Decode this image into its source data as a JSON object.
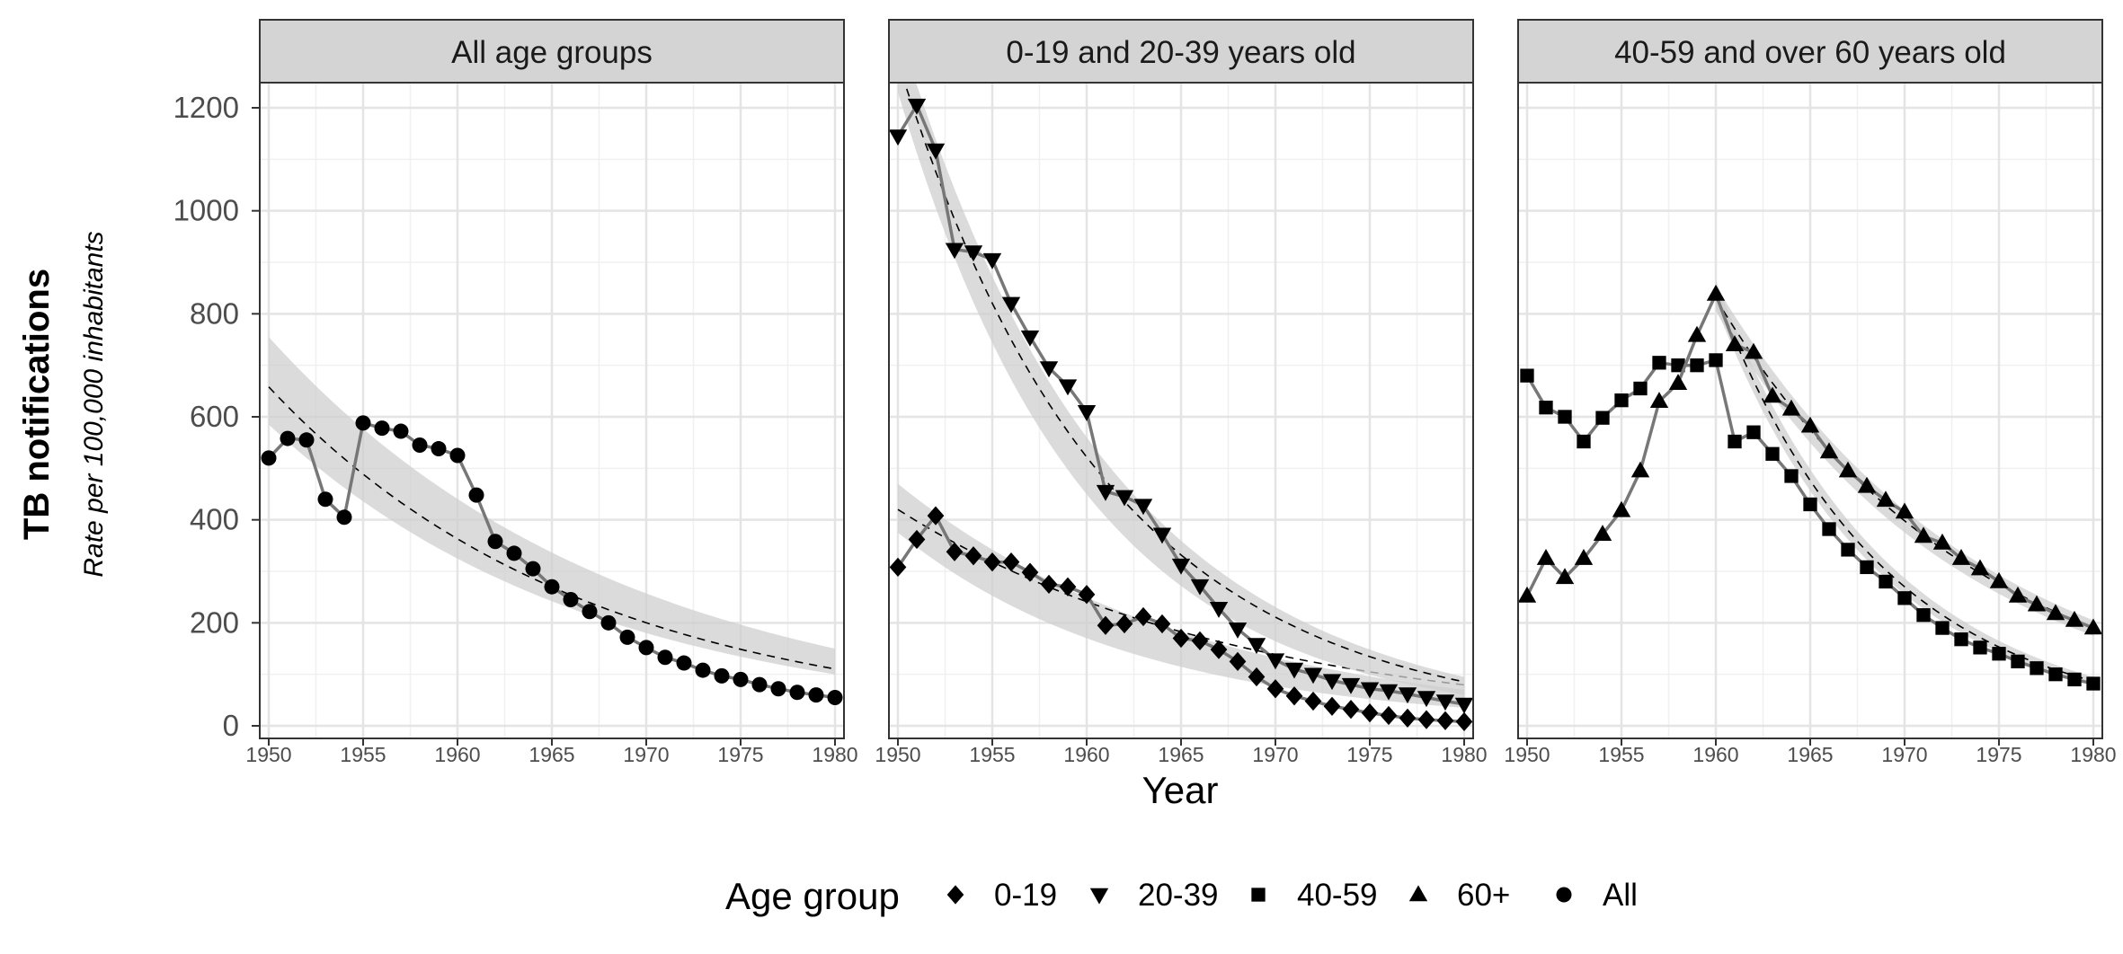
{
  "chart_data": {
    "type": "line",
    "ylabel": "TB notifications",
    "ylabel_sub": "Rate per 100,000 inhabitants",
    "xlabel": "Year",
    "xlim": [
      1950,
      1980
    ],
    "ylim": [
      0,
      1200
    ],
    "x_ticks": [
      1950,
      1955,
      1960,
      1965,
      1970,
      1975,
      1980
    ],
    "y_ticks": [
      0,
      200,
      400,
      600,
      800,
      1000,
      1200
    ],
    "grid": true,
    "legend": {
      "title": "Age group",
      "position": "bottom",
      "entries": [
        {
          "shape": "diamond",
          "label": "0-19"
        },
        {
          "shape": "triangle-down",
          "label": "20-39"
        },
        {
          "shape": "square",
          "label": "40-59"
        },
        {
          "shape": "triangle-up",
          "label": "60+"
        },
        {
          "shape": "circle",
          "label": "All"
        }
      ]
    },
    "panels": [
      {
        "title": "All age groups",
        "series": [
          {
            "name": "All",
            "shape": "circle",
            "x": [
              1950,
              1951,
              1952,
              1953,
              1954,
              1955,
              1956,
              1957,
              1958,
              1959,
              1960,
              1961,
              1962,
              1963,
              1964,
              1965,
              1966,
              1967,
              1968,
              1969,
              1970,
              1971,
              1972,
              1973,
              1974,
              1975,
              1976,
              1977,
              1978,
              1979,
              1980
            ],
            "y": [
              520,
              558,
              555,
              440,
              405,
              588,
              578,
              572,
              545,
              538,
              525,
              448,
              358,
              335,
              305,
              270,
              245,
              222,
              200,
              172,
              152,
              133,
              122,
              108,
              97,
              90,
              80,
              72,
              65,
              60,
              55
            ],
            "fit": {
              "a": 658,
              "k": 0.0595,
              "lower": [
                585,
                100
              ],
              "upper": [
                755,
                150
              ]
            }
          }
        ]
      },
      {
        "title": "0-19 and 20-39 years old",
        "series": [
          {
            "name": "0-19",
            "shape": "diamond",
            "x": [
              1950,
              1951,
              1952,
              1953,
              1954,
              1955,
              1956,
              1957,
              1958,
              1959,
              1960,
              1961,
              1962,
              1963,
              1964,
              1965,
              1966,
              1967,
              1968,
              1969,
              1970,
              1971,
              1972,
              1973,
              1974,
              1975,
              1976,
              1977,
              1978,
              1979,
              1980
            ],
            "y": [
              308,
              362,
              408,
              338,
              330,
              318,
              318,
              298,
              275,
              270,
              255,
              195,
              198,
              212,
              198,
              170,
              165,
              148,
              125,
              95,
              72,
              58,
              48,
              38,
              32,
              25,
              20,
              15,
              12,
              10,
              8
            ],
            "fit": {
              "a": 420,
              "k": 0.0555,
              "lower": [
                375,
                35
              ],
              "upper": [
                470,
                70
              ]
            }
          },
          {
            "name": "20-39",
            "shape": "triangle-down",
            "x": [
              1950,
              1951,
              1952,
              1953,
              1954,
              1955,
              1956,
              1957,
              1958,
              1959,
              1960,
              1961,
              1962,
              1963,
              1964,
              1965,
              1966,
              1967,
              1968,
              1969,
              1970,
              1971,
              1972,
              1973,
              1974,
              1975,
              1976,
              1977,
              1978,
              1979,
              1980
            ],
            "y": [
              1145,
              1205,
              1118,
              925,
              920,
              905,
              820,
              755,
              695,
              660,
              610,
              455,
              445,
              428,
              372,
              312,
              272,
              228,
              188,
              158,
              128,
              110,
              100,
              88,
              80,
              72,
              68,
              62,
              55,
              48,
              42
            ],
            "fit": {
              "a": 1290,
              "k": 0.0905,
              "lower": [
                1230,
                60
              ],
              "upper": [
                1360,
                95
              ]
            }
          }
        ]
      },
      {
        "title": "40-59 and over 60 years old",
        "series": [
          {
            "name": "40-59",
            "shape": "square",
            "x": [
              1950,
              1951,
              1952,
              1953,
              1954,
              1955,
              1956,
              1957,
              1958,
              1959,
              1960,
              1961,
              1962,
              1963,
              1964,
              1965,
              1966,
              1967,
              1968,
              1969,
              1970,
              1971,
              1972,
              1973,
              1974,
              1975,
              1976,
              1977,
              1978,
              1979,
              1980
            ],
            "y": [
              680,
              618,
              600,
              552,
              598,
              632,
              655,
              705,
              700,
              700,
              710,
              552,
              570,
              528,
              485,
              430,
              382,
              342,
              308,
              280,
              248,
              215,
              190,
              168,
              152,
              140,
              125,
              112,
              100,
              90,
              82
            ],
            "fit": {
              "start": 1960,
              "a": 840,
              "k": 0.1135,
              "lower": [
                815,
                80
              ],
              "upper": [
                865,
                95
              ]
            }
          },
          {
            "name": "60+",
            "shape": "triangle-up",
            "x": [
              1950,
              1951,
              1952,
              1953,
              1954,
              1955,
              1956,
              1957,
              1958,
              1959,
              1960,
              1961,
              1962,
              1963,
              1964,
              1965,
              1966,
              1967,
              1968,
              1969,
              1970,
              1971,
              1972,
              1973,
              1974,
              1975,
              1976,
              1977,
              1978,
              1979,
              1980
            ],
            "y": [
              252,
              325,
              288,
              325,
              372,
              418,
              495,
              630,
              665,
              758,
              838,
              740,
              725,
              640,
              615,
              582,
              532,
              495,
              465,
              438,
              415,
              368,
              355,
              325,
              305,
              280,
              252,
              235,
              218,
              205,
              190
            ],
            "fit": {
              "start": 1960,
              "a": 830,
              "k": 0.0735,
              "lower": [
                805,
                175
              ],
              "upper": [
                855,
                205
              ]
            }
          }
        ]
      }
    ]
  }
}
